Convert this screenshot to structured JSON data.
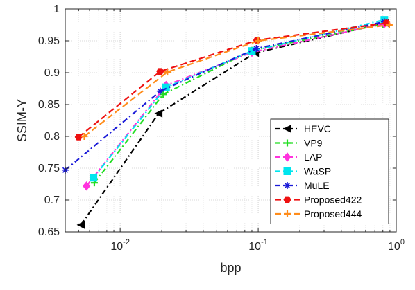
{
  "chart_data": {
    "type": "line",
    "title": "",
    "xlabel": "bpp",
    "ylabel": "SSIM-Y",
    "xscale": "log",
    "xlim": [
      0.004,
      1.0
    ],
    "ylim": [
      0.65,
      1.0
    ],
    "yticks": [
      "0.65",
      "0.7",
      "0.75",
      "0.8",
      "0.85",
      "0.9",
      "0.95",
      "1"
    ],
    "xticks": [
      {
        "base": "10",
        "exp": "-2",
        "value": 0.01
      },
      {
        "base": "10",
        "exp": "-1",
        "value": 0.1
      },
      {
        "base": "10",
        "exp": "0",
        "value": 1
      }
    ],
    "grid": true,
    "legend_position": "bottom-right",
    "series": [
      {
        "name": "HEVC",
        "color": "#000000",
        "dash": "8,4,2,4",
        "marker": "triangle-left",
        "x": [
          0.0052,
          0.019,
          0.095,
          0.83
        ],
        "y": [
          0.661,
          0.836,
          0.931,
          0.978
        ]
      },
      {
        "name": "VP9",
        "color": "#22dd22",
        "dash": "8,4,2,4",
        "marker": "plus",
        "x": [
          0.0065,
          0.0205,
          0.09,
          0.8
        ],
        "y": [
          0.727,
          0.866,
          0.935,
          0.976
        ]
      },
      {
        "name": "LAP",
        "color": "#ff33dd",
        "dash": "8,4,2,4",
        "marker": "diamond",
        "x": [
          0.0057,
          0.0215,
          0.09,
          0.82
        ],
        "y": [
          0.722,
          0.88,
          0.932,
          0.977
        ]
      },
      {
        "name": "WaSP",
        "color": "#00e5ee",
        "dash": "8,4,2,4",
        "marker": "square",
        "x": [
          0.0064,
          0.0215,
          0.09,
          0.82
        ],
        "y": [
          0.735,
          0.877,
          0.934,
          0.983
        ]
      },
      {
        "name": "MuLE",
        "color": "#1a1ad8",
        "dash": "8,4,2,4",
        "marker": "asterisk",
        "x": [
          0.004,
          0.0195,
          0.097,
          0.82
        ],
        "y": [
          0.747,
          0.871,
          0.938,
          0.98
        ]
      },
      {
        "name": "Proposed422",
        "color": "#ee1111",
        "dash": "9,5",
        "marker": "hexagon",
        "x": [
          0.005,
          0.0195,
          0.098,
          0.85
        ],
        "y": [
          0.799,
          0.902,
          0.951,
          0.978
        ]
      },
      {
        "name": "Proposed444",
        "color": "#ff8c1a",
        "dash": "9,5",
        "marker": "plus",
        "x": [
          0.0055,
          0.022,
          0.1,
          0.89
        ],
        "y": [
          0.8,
          0.901,
          0.95,
          0.975
        ]
      }
    ]
  }
}
